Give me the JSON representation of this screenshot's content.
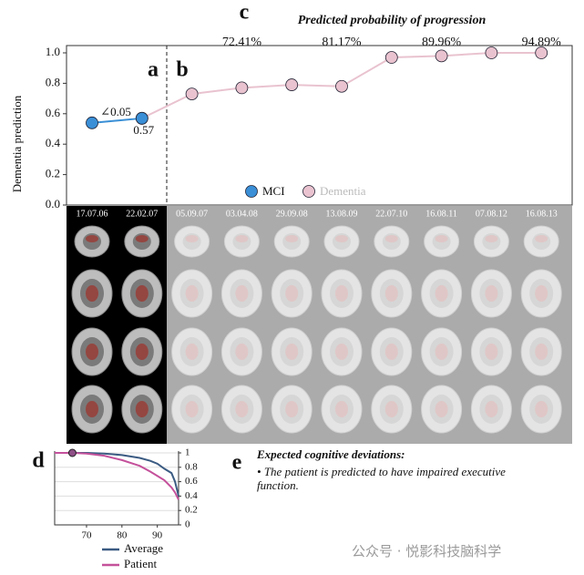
{
  "panel_labels": [
    "a",
    "b",
    "c",
    "d",
    "e"
  ],
  "chart_data": [
    {
      "type": "line",
      "title": "Predicted probability of progression",
      "ylabel": "Dementia prediction",
      "categories": [
        "17.07.06",
        "22.02.07",
        "05.09.07",
        "03.04.08",
        "29.09.08",
        "13.08.09",
        "22.07.10",
        "16.08.11",
        "07.08.12",
        "16.08.13"
      ],
      "ylim": [
        0,
        1
      ],
      "yticks": [
        {
          "value": 0,
          "label": "0.0"
        },
        0.2,
        0.4,
        0.6,
        0.8,
        {
          "value": 1,
          "label": "1.0"
        }
      ],
      "probability_labels": [
        null,
        null,
        null,
        "72.41%",
        null,
        "81.17%",
        null,
        "89.96%",
        null,
        "94.89%"
      ],
      "slope_label": "∠0.05",
      "series": [
        {
          "name": "Dementia",
          "color": "#e9c3cf",
          "values": [
            null,
            0.57,
            0.73,
            0.77,
            0.79,
            0.78,
            0.97,
            0.98,
            1.0,
            1.0
          ]
        },
        {
          "name": "MCI",
          "color": "#3a8fd6",
          "values": [
            0.54,
            0.57,
            null,
            null,
            null,
            null,
            null,
            null,
            null,
            null
          ],
          "value_labels": [
            null,
            "0.57",
            null,
            null,
            null,
            null,
            null,
            null,
            null,
            null
          ]
        }
      ]
    },
    {
      "type": "line",
      "x": [
        61,
        66,
        70,
        75,
        80,
        85,
        88,
        90,
        92,
        94,
        95,
        96
      ],
      "xlim": [
        61,
        96
      ],
      "xticks": [
        70,
        80,
        90
      ],
      "ylim": [
        0,
        1
      ],
      "yticks": [
        0,
        0.2,
        0.4,
        0.6,
        0.8,
        1
      ],
      "grid": true,
      "highlight": {
        "x": 66,
        "y": 1,
        "color": "#8e4f86"
      },
      "series": [
        {
          "name": "Average",
          "color": "#3b5b82",
          "values": [
            1,
            1,
            1,
            0.99,
            0.97,
            0.93,
            0.89,
            0.85,
            0.78,
            0.72,
            0.6,
            0.4
          ]
        },
        {
          "name": "Patient",
          "color": "#c4519b",
          "values": [
            1,
            1,
            0.99,
            0.96,
            0.9,
            0.82,
            0.74,
            0.68,
            0.62,
            0.52,
            0.45,
            0.35
          ]
        }
      ]
    }
  ],
  "panel_e": {
    "heading": "Expected cognitive deviations:",
    "bullet": "The patient is predicted to have impaired executive function."
  },
  "watermark": "公众号 · 悦影科技脑科学"
}
